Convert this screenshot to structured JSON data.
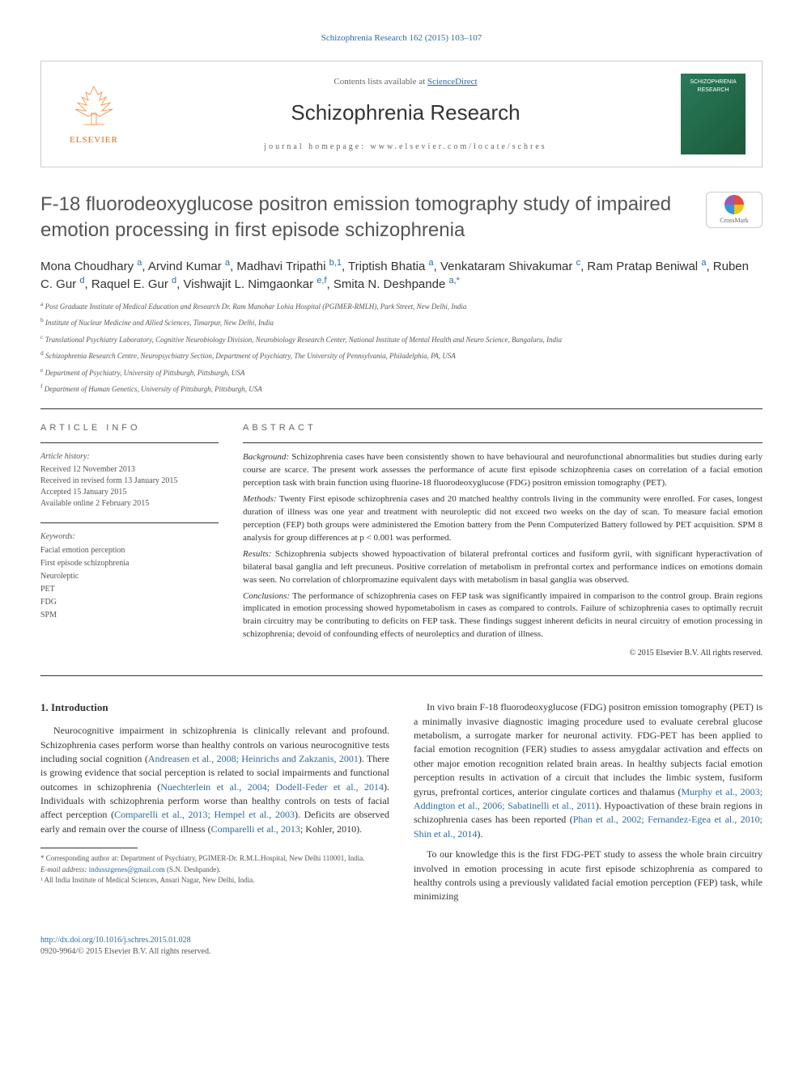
{
  "top_citation": "Schizophrenia Research 162 (2015) 103–107",
  "header": {
    "contents_prefix": "Contents lists available at ",
    "contents_link": "ScienceDirect",
    "journal_title": "Schizophrenia Research",
    "homepage_label": "journal homepage: www.elsevier.com/locate/schres",
    "elsevier_label": "ELSEVIER",
    "cover_text_1": "SCHIZOPHRENIA",
    "cover_text_2": "RESEARCH"
  },
  "article": {
    "title": "F-18 fluorodeoxyglucose positron emission tomography study of impaired emotion processing in first episode schizophrenia",
    "crossmark_label": "CrossMark"
  },
  "authors": [
    {
      "name": "Mona Choudhary",
      "sup": "a"
    },
    {
      "name": "Arvind Kumar",
      "sup": "a"
    },
    {
      "name": "Madhavi Tripathi",
      "sup": "b,1"
    },
    {
      "name": "Triptish Bhatia",
      "sup": "a"
    },
    {
      "name": "Venkataram Shivakumar",
      "sup": "c"
    },
    {
      "name": "Ram Pratap Beniwal",
      "sup": "a"
    },
    {
      "name": "Ruben C. Gur",
      "sup": "d"
    },
    {
      "name": "Raquel E. Gur",
      "sup": "d"
    },
    {
      "name": "Vishwajit L. Nimgaonkar",
      "sup": "e,f"
    },
    {
      "name": "Smita N. Deshpande",
      "sup": "a,*"
    }
  ],
  "affiliations": [
    {
      "key": "a",
      "text": "Post Graduate Institute of Medical Education and Research Dr. Ram Manohar Lohia Hospital (PGIMER-RMLH), Park Street, New Delhi, India"
    },
    {
      "key": "b",
      "text": "Institute of Nuclear Medicine and Allied Sciences, Timarpur, New Delhi, India"
    },
    {
      "key": "c",
      "text": "Translational Psychiatry Laboratory, Cognitive Neurobiology Division, Neurobiology Research Center, National Institute of Mental Health and Neuro Science, Bangaluru, India"
    },
    {
      "key": "d",
      "text": "Schizophrenia Research Centre, Neuropsychiatry Section, Department of Psychiatry, The University of Pennsylvania, Philadelphia, PA, USA"
    },
    {
      "key": "e",
      "text": "Department of Psychiatry, University of Pittsburgh, Pittsburgh, USA"
    },
    {
      "key": "f",
      "text": "Department of Human Genetics, University of Pittsburgh, Pittsburgh, USA"
    }
  ],
  "article_info": {
    "heading": "ARTICLE INFO",
    "history_label": "Article history:",
    "history": [
      "Received 12 November 2013",
      "Received in revised form 13 January 2015",
      "Accepted 15 January 2015",
      "Available online 2 February 2015"
    ],
    "keywords_label": "Keywords:",
    "keywords": [
      "Facial emotion perception",
      "First episode schizophrenia",
      "Neuroleptic",
      "PET",
      "FDG",
      "SPM"
    ]
  },
  "abstract": {
    "heading": "ABSTRACT",
    "segments": [
      {
        "label": "Background:",
        "text": "Schizophrenia cases have been consistently shown to have behavioural and neurofunctional abnormalities but studies during early course are scarce. The present work assesses the performance of acute first episode schizophrenia cases on correlation of a facial emotion perception task with brain function using fluorine-18 fluorodeoxyglucose (FDG) positron emission tomography (PET)."
      },
      {
        "label": "Methods:",
        "text": "Twenty First episode schizophrenia cases and 20 matched healthy controls living in the community were enrolled. For cases, longest duration of illness was one year and treatment with neuroleptic did not exceed two weeks on the day of scan. To measure facial emotion perception (FEP) both groups were administered the Emotion battery from the Penn Computerized Battery followed by PET acquisition. SPM 8 analysis for group differences at p < 0.001 was performed."
      },
      {
        "label": "Results:",
        "text": "Schizophrenia subjects showed hypoactivation of bilateral prefrontal cortices and fusiform gyrii, with significant hyperactivation of bilateral basal ganglia and left precuneus. Positive correlation of metabolism in prefrontal cortex and performance indices on emotions domain was seen. No correlation of chlorpromazine equivalent days with metabolism in basal ganglia was observed."
      },
      {
        "label": "Conclusions:",
        "text": "The performance of schizophrenia cases on FEP task was significantly impaired in comparison to the control group. Brain regions implicated in emotion processing showed hypometabolism in cases as compared to controls. Failure of schizophrenia cases to optimally recruit brain circuitry may be contributing to deficits on FEP task. These findings suggest inherent deficits in neural circuitry of emotion processing in schizophrenia; devoid of confounding effects of neuroleptics and duration of illness."
      }
    ],
    "copyright": "© 2015 Elsevier B.V. All rights reserved."
  },
  "body": {
    "intro_heading": "1. Introduction",
    "left_paragraphs": [
      {
        "text_before": "Neurocognitive impairment in schizophrenia is clinically relevant and profound. Schizophrenia cases perform worse than healthy controls on various neurocognitive tests including social cognition (",
        "link": "Andreasen et al., 2008; Heinrichs and Zakzanis, 2001",
        "text_after": "). There is growing evidence that social perception is related to social impairments and functional outcomes in schizophrenia (",
        "link2": "Nuechterlein et al., 2004; Dodell-Feder et al., 2014",
        "text_after2": "). Individuals with schizophrenia perform worse than healthy controls on tests of facial affect perception (",
        "link3": "Comparelli et al., 2013; Hempel et al., 2003",
        "text_after3": "). Deficits are observed early and remain over the course of illness (",
        "link4": "Comparelli et al., 2013",
        "text_after4": "; Kohler, 2010)."
      }
    ],
    "right_paragraphs": [
      {
        "text_before": "In vivo brain F-18 fluorodeoxyglucose (FDG) positron emission tomography (PET) is a minimally invasive diagnostic imaging procedure used to evaluate cerebral glucose metabolism, a surrogate marker for neuronal activity. FDG-PET has been applied to facial emotion recognition (FER) studies to assess amygdalar activation and effects on other major emotion recognition related brain areas. In healthy subjects facial emotion perception results in activation of a circuit that includes the limbic system, fusiform gyrus, prefrontal cortices, anterior cingulate cortices and thalamus (",
        "link": "Murphy et al., 2003; Addington et al., 2006; Sabatinelli et al., 2011",
        "text_after": "). Hypoactivation of these brain regions in schizophrenia cases has been reported (",
        "link2": "Phan et al., 2002; Fernandez-Egea et al., 2010; Shin et al., 2014",
        "text_after2": ")."
      },
      {
        "text_before": "To our knowledge this is the first FDG-PET study to assess the whole brain circuitry involved in emotion processing in acute first episode schizophrenia as compared to healthy controls using a previously validated facial emotion perception (FEP) task, while minimizing"
      }
    ]
  },
  "footnotes": {
    "corresponding": "* Corresponding author at: Department of Psychiatry, PGIMER-Dr. R.M.L.Hospital, New Delhi 110001, India.",
    "email_label": "E-mail address: ",
    "email": "indusszgenes@gmail.com",
    "email_suffix": " (S.N. Deshpande).",
    "note1": "¹ All India Institute of Medical Sciences, Ansari Nagar, New Delhi, India."
  },
  "footer": {
    "doi": "http://dx.doi.org/10.1016/j.schres.2015.01.028",
    "issn_copyright": "0920-9964/© 2015 Elsevier B.V. All rights reserved."
  },
  "colors": {
    "link": "#2d6aa3",
    "text": "#333333",
    "muted": "#666666",
    "border": "#cccccc",
    "orange": "#ff6600"
  }
}
